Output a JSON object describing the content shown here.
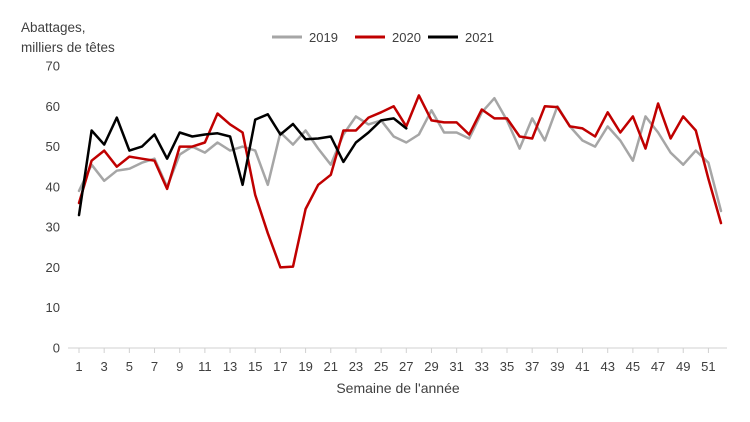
{
  "chart_data": {
    "type": "line",
    "title": "",
    "ylabel_lines": [
      "Abattages,",
      "milliers de têtes"
    ],
    "xlabel": "Semaine de l'année",
    "ylim": [
      0,
      70
    ],
    "yticks": [
      0,
      10,
      20,
      30,
      40,
      50,
      60,
      70
    ],
    "xlim": [
      1,
      52
    ],
    "xticks": [
      1,
      3,
      5,
      7,
      9,
      11,
      13,
      15,
      17,
      19,
      21,
      23,
      25,
      27,
      29,
      31,
      33,
      35,
      37,
      39,
      41,
      43,
      45,
      47,
      49,
      51
    ],
    "grid": false,
    "legend_position": "top",
    "series": [
      {
        "name": "2019",
        "color": "#a6a6a6",
        "x": [
          1,
          2,
          3,
          4,
          5,
          6,
          7,
          8,
          9,
          10,
          11,
          12,
          13,
          14,
          15,
          16,
          17,
          18,
          19,
          20,
          21,
          22,
          23,
          24,
          25,
          26,
          27,
          28,
          29,
          30,
          31,
          32,
          33,
          34,
          35,
          36,
          37,
          38,
          39,
          40,
          41,
          42,
          43,
          44,
          45,
          46,
          47,
          48,
          49,
          50,
          51,
          52
        ],
        "values": [
          39,
          45.5,
          41.5,
          44,
          44.5,
          46,
          47,
          40,
          48,
          50,
          48.5,
          51,
          49,
          50,
          49,
          40.5,
          53.5,
          50.5,
          54,
          49.5,
          45.5,
          53,
          57.5,
          55.5,
          56.5,
          52.5,
          51,
          53,
          59,
          53.5,
          53.5,
          52,
          58.5,
          62,
          56.5,
          49.5,
          57,
          51.5,
          60,
          55,
          51.5,
          50,
          55,
          51.5,
          46.5,
          57.5,
          53.5,
          48.5,
          45.5,
          49,
          46,
          34
        ]
      },
      {
        "name": "2020",
        "color": "#c00000",
        "x": [
          1,
          2,
          3,
          4,
          5,
          6,
          7,
          8,
          9,
          10,
          11,
          12,
          13,
          14,
          15,
          16,
          17,
          18,
          19,
          20,
          21,
          22,
          23,
          24,
          25,
          26,
          27,
          28,
          29,
          30,
          31,
          32,
          33,
          34,
          35,
          36,
          37,
          38,
          39,
          40,
          41,
          42,
          43,
          44,
          45,
          46,
          47,
          48,
          49,
          50,
          51,
          52
        ],
        "values": [
          36,
          46.5,
          49,
          45,
          47.5,
          47,
          46.5,
          39.5,
          50,
          50,
          51,
          58.2,
          55.5,
          53.5,
          38,
          28.5,
          20,
          20.2,
          34.5,
          40.5,
          43,
          54,
          54,
          57.2,
          58.5,
          60,
          55,
          62.7,
          56.5,
          56,
          56,
          53,
          59.2,
          57,
          57,
          52.5,
          52,
          60,
          59.8,
          55,
          54.5,
          52.5,
          58.5,
          53.5,
          57.5,
          49.5,
          60.7,
          52,
          57.5,
          54,
          42,
          31
        ]
      },
      {
        "name": "2021",
        "color": "#000000",
        "x": [
          1,
          2,
          3,
          4,
          5,
          6,
          7,
          8,
          9,
          10,
          11,
          12,
          13,
          14,
          15,
          16,
          17,
          18,
          19,
          20,
          21,
          22,
          23,
          24,
          25,
          26,
          27
        ],
        "values": [
          33,
          54,
          50.5,
          57.2,
          49,
          50,
          53,
          47,
          53.5,
          52.5,
          53,
          53.3,
          52.5,
          40.5,
          56.7,
          58,
          53,
          55.6,
          51.8,
          52,
          52.5,
          46.2,
          51,
          53.5,
          56.5,
          57,
          54.5
        ]
      }
    ]
  }
}
